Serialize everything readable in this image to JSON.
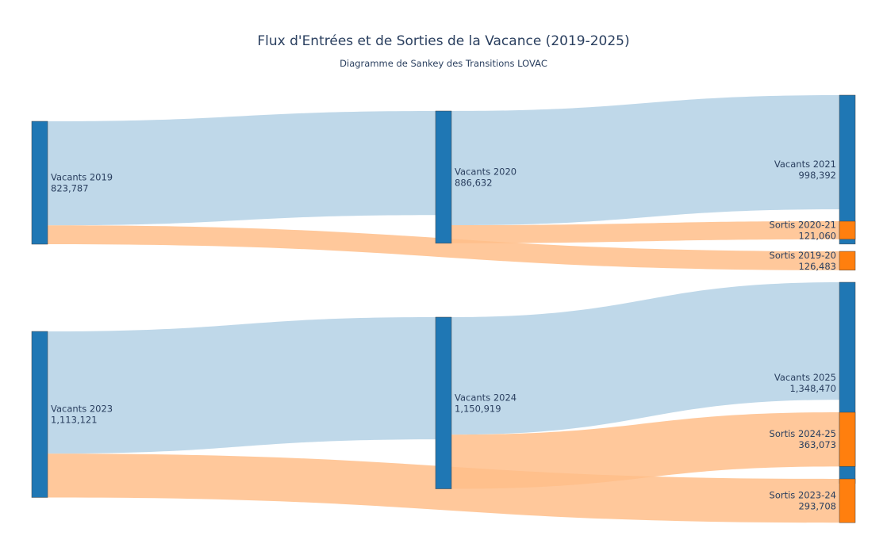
{
  "chart_data": {
    "type": "sankey",
    "title": "Flux d'Entrées et de Sorties de la Vacance (2019-2025)",
    "subtitle": "Diagramme de Sankey des Transitions LOVAC",
    "colors": {
      "node_stock": "#1f77b4",
      "node_exit": "#ff7f0e",
      "link_stock": "#bcd6e8",
      "link_exit": "#ffbe8a"
    },
    "nodes": [
      {
        "id": "v2019",
        "name": "Vacants 2019",
        "value_label": "823,787",
        "value": 823787,
        "kind": "stock"
      },
      {
        "id": "v2020",
        "name": "Vacants 2020",
        "value_label": "886,632",
        "value": 886632,
        "kind": "stock"
      },
      {
        "id": "v2021",
        "name": "Vacants 2021",
        "value_label": "998,392",
        "value": 998392,
        "kind": "stock"
      },
      {
        "id": "s2021",
        "name": "Sortis 2020-21",
        "value_label": "121,060",
        "value": 121060,
        "kind": "exit"
      },
      {
        "id": "s1920",
        "name": "Sortis 2019-20",
        "value_label": "126,483",
        "value": 126483,
        "kind": "exit"
      },
      {
        "id": "v2023",
        "name": "Vacants 2023",
        "value_label": "1,113,121",
        "value": 1113121,
        "kind": "stock"
      },
      {
        "id": "v2024",
        "name": "Vacants 2024",
        "value_label": "1,150,919",
        "value": 1150919,
        "kind": "stock"
      },
      {
        "id": "v2025",
        "name": "Vacants 2025",
        "value_label": "1,348,470",
        "value": 1348470,
        "kind": "stock"
      },
      {
        "id": "s2425",
        "name": "Sortis 2024-25",
        "value_label": "363,073",
        "value": 363073,
        "kind": "exit"
      },
      {
        "id": "s2324",
        "name": "Sortis 2023-24",
        "value_label": "293,708",
        "value": 293708,
        "kind": "exit"
      }
    ],
    "links": [
      {
        "source": "v2019",
        "target": "v2020",
        "value": 697304,
        "kind": "stock"
      },
      {
        "source": "v2019",
        "target": "s1920",
        "value": 126483,
        "kind": "exit"
      },
      {
        "source": "v2020",
        "target": "v2021",
        "value": 765572,
        "kind": "stock"
      },
      {
        "source": "v2020",
        "target": "s2021",
        "value": 121060,
        "kind": "exit"
      },
      {
        "source": "v2023",
        "target": "v2024",
        "value": 819413,
        "kind": "stock"
      },
      {
        "source": "v2023",
        "target": "s2324",
        "value": 293708,
        "kind": "exit"
      },
      {
        "source": "v2024",
        "target": "v2025",
        "value": 787846,
        "kind": "stock"
      },
      {
        "source": "v2024",
        "target": "s2425",
        "value": 363073,
        "kind": "exit"
      }
    ]
  }
}
